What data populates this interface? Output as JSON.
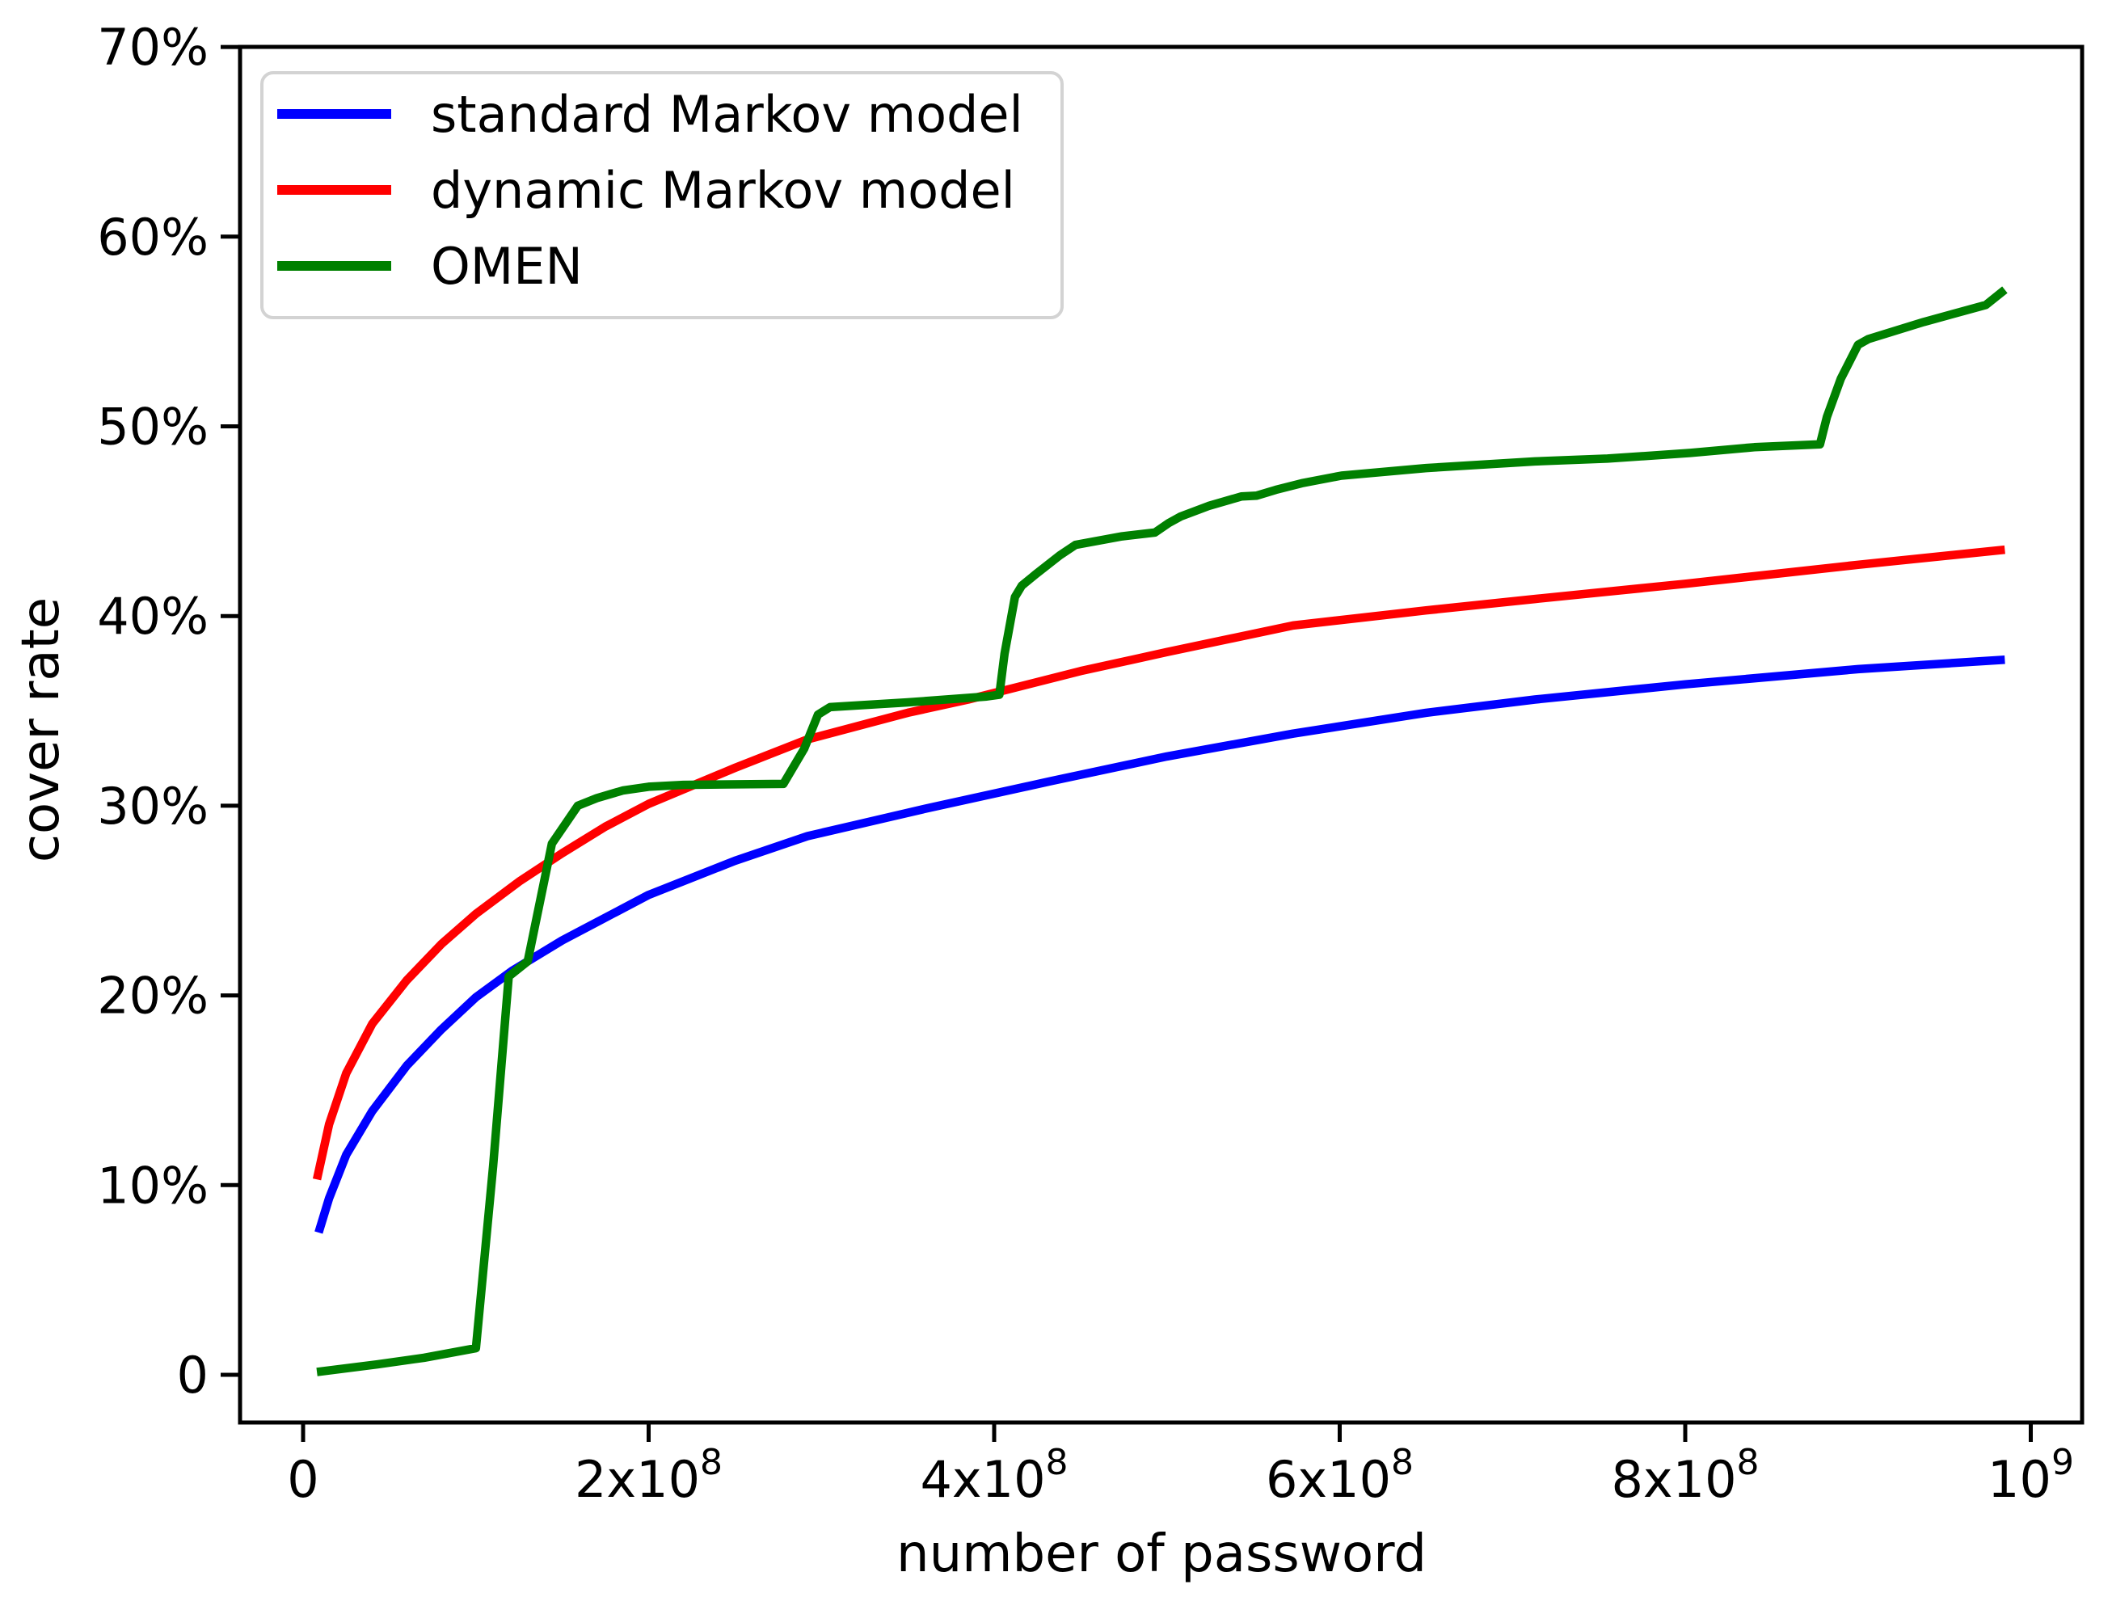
{
  "chart_data": {
    "type": "line",
    "title": "",
    "xlabel": "number of password",
    "ylabel": "cover rate",
    "x_values_unit": "1e8 (values below are multiples of 10^8 passwords)",
    "xlim_1e8": [
      -0.36,
      10.3
    ],
    "ylim_percent": [
      -2.6,
      70
    ],
    "grid": false,
    "legend_position": "upper left",
    "axis_color": "#000000",
    "legend_border_color": "#d3d3d3",
    "x_ticks": [
      {
        "v": 0,
        "base": "0",
        "exp": ""
      },
      {
        "v": 2,
        "base": "2x10",
        "exp": "8"
      },
      {
        "v": 4,
        "base": "4x10",
        "exp": "8"
      },
      {
        "v": 6,
        "base": "6x10",
        "exp": "8"
      },
      {
        "v": 8,
        "base": "8x10",
        "exp": "8"
      },
      {
        "v": 10,
        "base": "10",
        "exp": "9"
      }
    ],
    "y_ticks": [
      {
        "v": 0,
        "label": "0"
      },
      {
        "v": 10,
        "label": "10%"
      },
      {
        "v": 20,
        "label": "20%"
      },
      {
        "v": 30,
        "label": "30%"
      },
      {
        "v": 40,
        "label": "40%"
      },
      {
        "v": 50,
        "label": "50%"
      },
      {
        "v": 60,
        "label": "60%"
      },
      {
        "v": 70,
        "label": "70%"
      }
    ],
    "series": [
      {
        "name": "standard Markov model",
        "color": "#0000ff",
        "points": [
          [
            0.09,
            7.5
          ],
          [
            0.15,
            9.3
          ],
          [
            0.25,
            11.6
          ],
          [
            0.4,
            13.9
          ],
          [
            0.6,
            16.3
          ],
          [
            0.8,
            18.2
          ],
          [
            1.0,
            19.9
          ],
          [
            1.21,
            21.3
          ],
          [
            1.5,
            22.9
          ],
          [
            2.0,
            25.3
          ],
          [
            2.5,
            27.1
          ],
          [
            2.92,
            28.4
          ],
          [
            3.63,
            29.9
          ],
          [
            4.33,
            31.3
          ],
          [
            5.0,
            32.6
          ],
          [
            5.73,
            33.8
          ],
          [
            6.5,
            34.9
          ],
          [
            7.13,
            35.6
          ],
          [
            8.0,
            36.4
          ],
          [
            9.0,
            37.2
          ],
          [
            9.85,
            37.7
          ]
        ]
      },
      {
        "name": "dynamic Markov model",
        "color": "#ff0000",
        "points": [
          [
            0.08,
            10.3
          ],
          [
            0.15,
            13.2
          ],
          [
            0.25,
            15.9
          ],
          [
            0.4,
            18.5
          ],
          [
            0.6,
            20.8
          ],
          [
            0.8,
            22.7
          ],
          [
            1.0,
            24.3
          ],
          [
            1.25,
            26.0
          ],
          [
            1.5,
            27.5
          ],
          [
            1.75,
            28.9
          ],
          [
            2.0,
            30.1
          ],
          [
            2.5,
            32.0
          ],
          [
            2.92,
            33.5
          ],
          [
            3.5,
            34.9
          ],
          [
            3.85,
            35.6
          ],
          [
            4.5,
            37.1
          ],
          [
            5.0,
            38.1
          ],
          [
            5.73,
            39.5
          ],
          [
            6.5,
            40.3
          ],
          [
            7.13,
            40.9
          ],
          [
            8.0,
            41.7
          ],
          [
            9.0,
            42.7
          ],
          [
            9.85,
            43.5
          ]
        ]
      },
      {
        "name": "OMEN",
        "color": "#008000",
        "points": [
          [
            0.08,
            0.15
          ],
          [
            0.43,
            0.55
          ],
          [
            0.7,
            0.9
          ],
          [
            1.0,
            1.4
          ],
          [
            1.1,
            11.0
          ],
          [
            1.19,
            21.0
          ],
          [
            1.3,
            21.8
          ],
          [
            1.44,
            28.0
          ],
          [
            1.59,
            30.0
          ],
          [
            1.7,
            30.4
          ],
          [
            1.85,
            30.8
          ],
          [
            2.0,
            31.0
          ],
          [
            2.2,
            31.1
          ],
          [
            2.78,
            31.15
          ],
          [
            2.9,
            33.0
          ],
          [
            2.98,
            34.8
          ],
          [
            3.05,
            35.2
          ],
          [
            3.5,
            35.45
          ],
          [
            3.95,
            35.75
          ],
          [
            4.03,
            35.85
          ],
          [
            4.06,
            38.0
          ],
          [
            4.12,
            41.0
          ],
          [
            4.16,
            41.6
          ],
          [
            4.24,
            42.2
          ],
          [
            4.38,
            43.2
          ],
          [
            4.47,
            43.75
          ],
          [
            4.74,
            44.2
          ],
          [
            4.93,
            44.4
          ],
          [
            5.01,
            44.9
          ],
          [
            5.08,
            45.25
          ],
          [
            5.24,
            45.8
          ],
          [
            5.43,
            46.3
          ],
          [
            5.52,
            46.35
          ],
          [
            5.63,
            46.65
          ],
          [
            5.78,
            47.0
          ],
          [
            6.01,
            47.4
          ],
          [
            6.5,
            47.8
          ],
          [
            7.13,
            48.15
          ],
          [
            7.55,
            48.3
          ],
          [
            8.03,
            48.6
          ],
          [
            8.4,
            48.9
          ],
          [
            8.78,
            49.05
          ],
          [
            8.82,
            50.5
          ],
          [
            8.9,
            52.5
          ],
          [
            9.0,
            54.3
          ],
          [
            9.06,
            54.6
          ],
          [
            9.38,
            55.5
          ],
          [
            9.74,
            56.4
          ],
          [
            9.85,
            57.2
          ]
        ]
      }
    ]
  }
}
